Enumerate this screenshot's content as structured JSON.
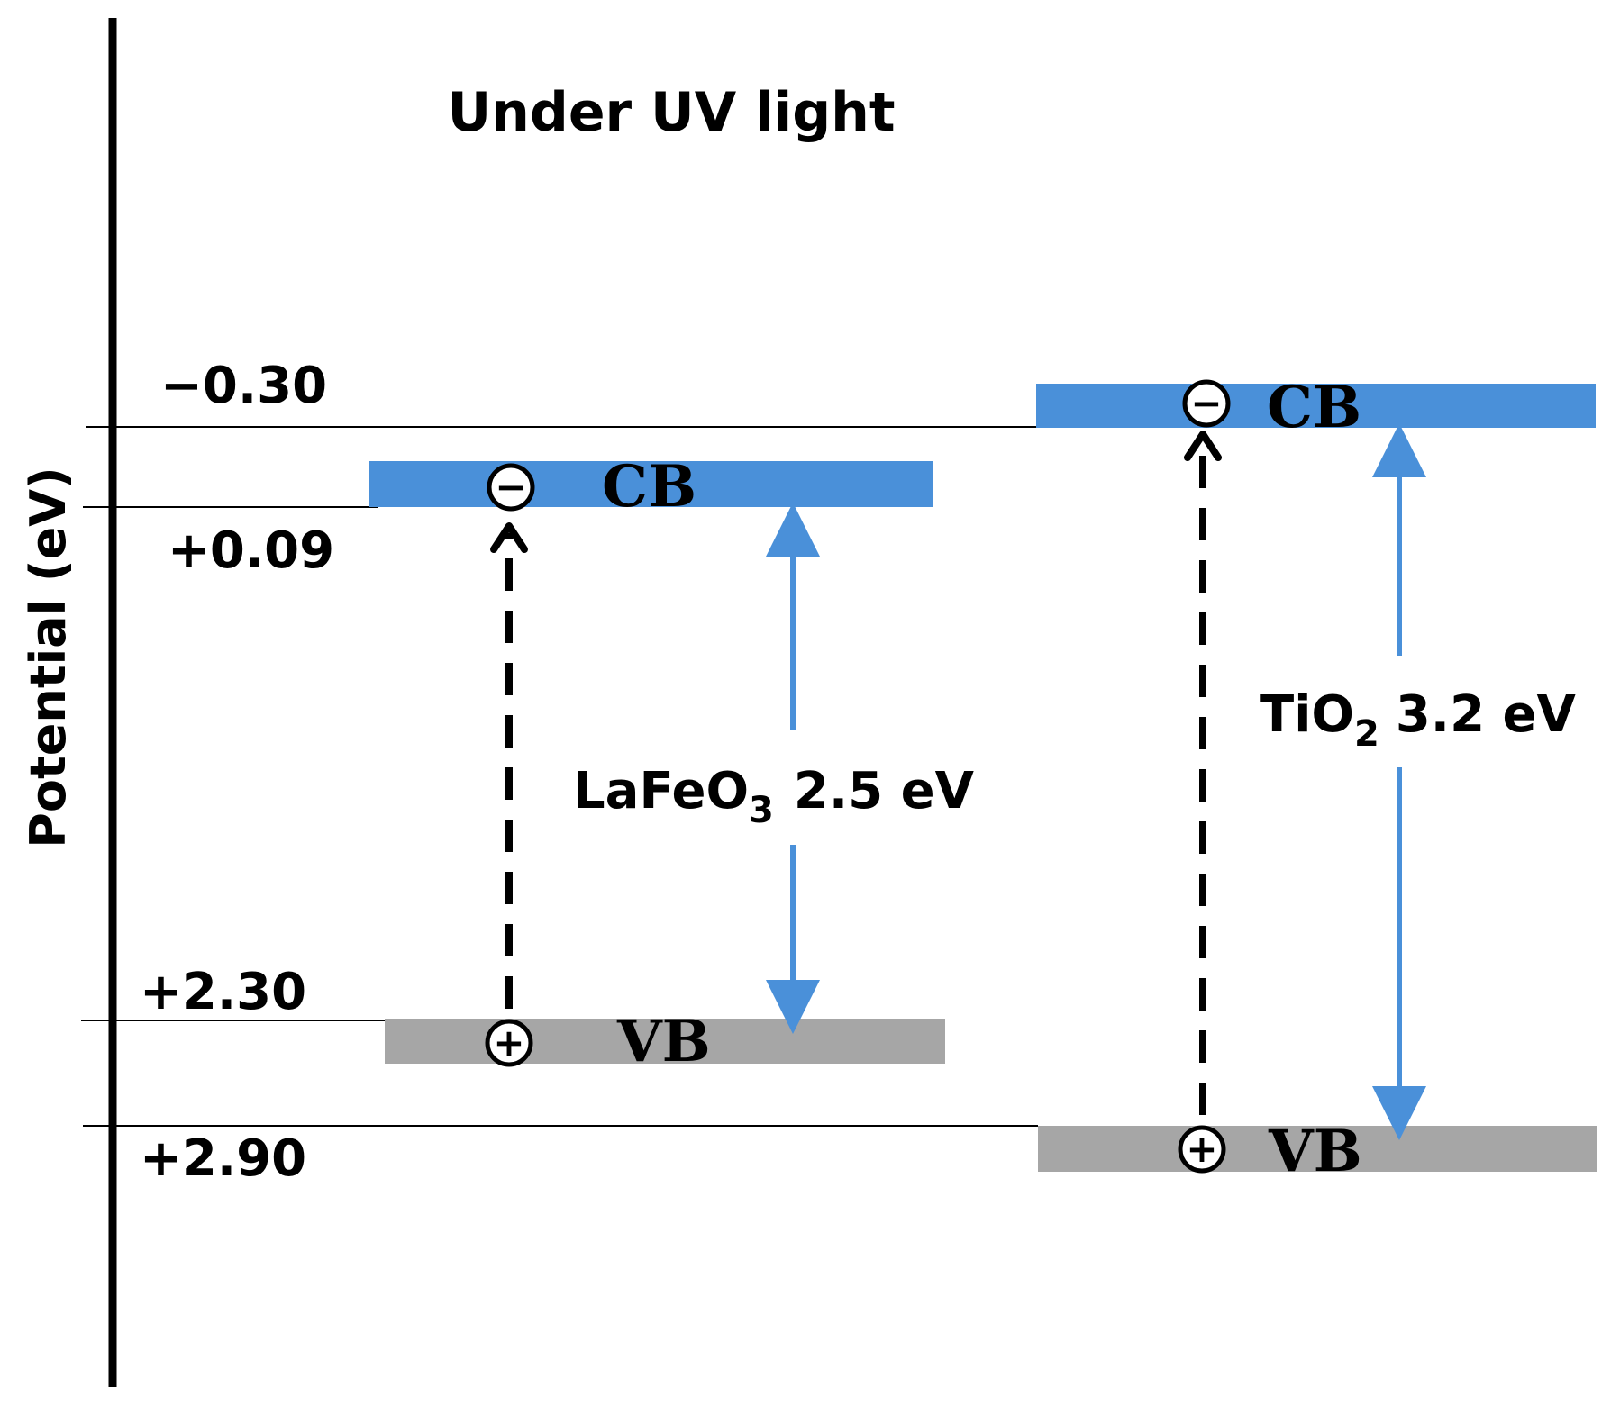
{
  "title": "Under UV light",
  "axis_label": "Potential (eV)",
  "levels": {
    "minus_0_30": "−0.30",
    "plus_0_09": "+0.09",
    "plus_2_30": "+2.30",
    "plus_2_90": "+2.90"
  },
  "lafeo3": {
    "cb_label": "CB",
    "vb_label": "VB",
    "name_prefix": "LaFeO",
    "name_subscript": "3",
    "gap_text": "2.5 eV"
  },
  "tio2": {
    "cb_label": "CB",
    "vb_label": "VB",
    "name_prefix": "TiO",
    "name_subscript": "2",
    "gap_text": "3.2 eV"
  },
  "colors": {
    "cb_band": "#4a90d9",
    "vb_band": "#a6a6a6",
    "gap_arrow": "#4a90d9",
    "excitation_arrow": "#000000",
    "text": "#000000"
  },
  "charges": {
    "electron_symbol": "−",
    "hole_symbol": "+"
  }
}
